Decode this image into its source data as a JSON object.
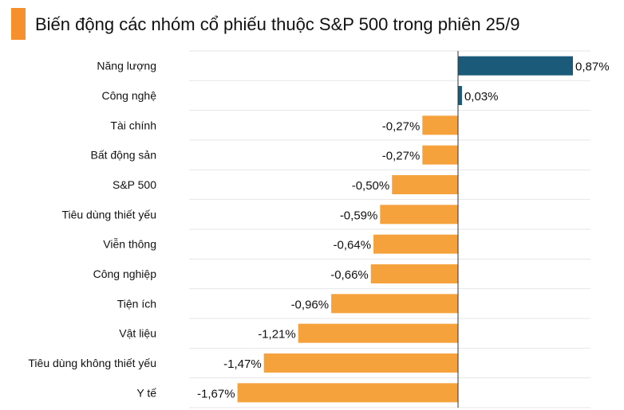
{
  "colors": {
    "accent": "#f6902d",
    "positive": "#1b5a78",
    "negative": "#f6a23c",
    "grid": "#e6e6e6"
  },
  "chart_data": {
    "type": "bar",
    "orientation": "horizontal",
    "title": "Biến động các nhóm cổ phiếu thuộc S&P 500 trong phiên 25/9",
    "xlim": [
      -1.67,
      0.87
    ],
    "grid": true,
    "categories": [
      "Năng lượng",
      "Công nghệ",
      "Tài chính",
      "Bất động sản",
      "S&P 500",
      "Tiêu dùng thiết yếu",
      "Viễn thông",
      "Công nghiệp",
      "Tiện ích",
      "Vật liệu",
      "Tiêu dùng không thiết yếu",
      "Y tế"
    ],
    "values": [
      0.87,
      0.03,
      -0.27,
      -0.27,
      -0.5,
      -0.59,
      -0.64,
      -0.66,
      -0.96,
      -1.21,
      -1.47,
      -1.67
    ],
    "value_labels": [
      "0,87%",
      "0,03%",
      "-0,27%",
      "-0,27%",
      "-0,50%",
      "-0,59%",
      "-0,64%",
      "-0,66%",
      "-0,96%",
      "-1,21%",
      "-1,47%",
      "-1,67%"
    ]
  }
}
